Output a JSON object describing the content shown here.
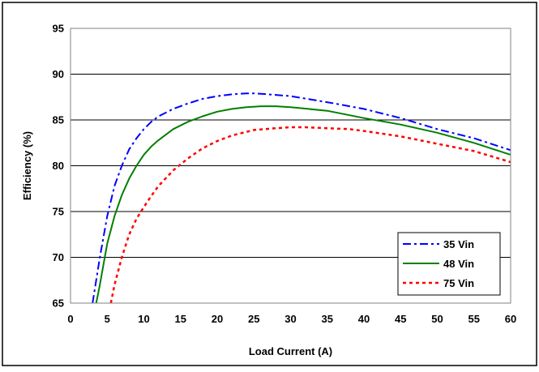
{
  "chart_data": {
    "type": "line",
    "title": "",
    "xlabel": "Load Current (A)",
    "ylabel": "Efficiency (%)",
    "xlim": [
      0,
      60
    ],
    "ylim": [
      65,
      95
    ],
    "xticks": [
      0,
      5,
      10,
      15,
      20,
      25,
      30,
      35,
      40,
      45,
      50,
      55,
      60
    ],
    "yticks": [
      65,
      70,
      75,
      80,
      85,
      90,
      95
    ],
    "grid": "horizontal",
    "legend_position": "bottom-right",
    "series": [
      {
        "name": "35 Vin",
        "color": "#0000ff",
        "dash": "dash-dot",
        "x": [
          3,
          4,
          5,
          6,
          7,
          8,
          9,
          10,
          11,
          12,
          14,
          16,
          18,
          20,
          22,
          24,
          25,
          27,
          30,
          33,
          36,
          40,
          45,
          50,
          55,
          60
        ],
        "y": [
          65,
          70,
          74.5,
          77.8,
          80,
          81.8,
          83,
          84,
          84.8,
          85.4,
          86.2,
          86.8,
          87.3,
          87.6,
          87.8,
          87.9,
          87.9,
          87.8,
          87.6,
          87.2,
          86.8,
          86.2,
          85.2,
          84,
          83,
          81.7
        ]
      },
      {
        "name": "48 Vin",
        "color": "#008000",
        "dash": "solid",
        "x": [
          3.5,
          4,
          5,
          6,
          7,
          8,
          9,
          10,
          11,
          12,
          14,
          16,
          18,
          20,
          22,
          24,
          26,
          28,
          30,
          35,
          40,
          45,
          50,
          55,
          60
        ],
        "y": [
          65,
          67,
          71.5,
          74.5,
          76.8,
          78.6,
          80,
          81.2,
          82.1,
          82.8,
          84,
          84.8,
          85.4,
          85.9,
          86.2,
          86.4,
          86.5,
          86.5,
          86.4,
          86,
          85.2,
          84.5,
          83.6,
          82.5,
          81.2
        ]
      },
      {
        "name": "75 Vin",
        "color": "#ff0000",
        "dash": "dotted",
        "x": [
          5.5,
          6,
          7,
          8,
          9,
          10,
          11,
          12,
          14,
          16,
          18,
          20,
          22,
          25,
          28,
          30,
          32,
          35,
          38,
          40,
          45,
          50,
          55,
          60
        ],
        "y": [
          65,
          67,
          70,
          72.5,
          74.2,
          75.5,
          76.7,
          77.8,
          79.5,
          80.8,
          81.9,
          82.7,
          83.3,
          83.9,
          84.1,
          84.2,
          84.2,
          84.1,
          84,
          83.8,
          83.2,
          82.4,
          81.6,
          80.4
        ]
      }
    ]
  }
}
